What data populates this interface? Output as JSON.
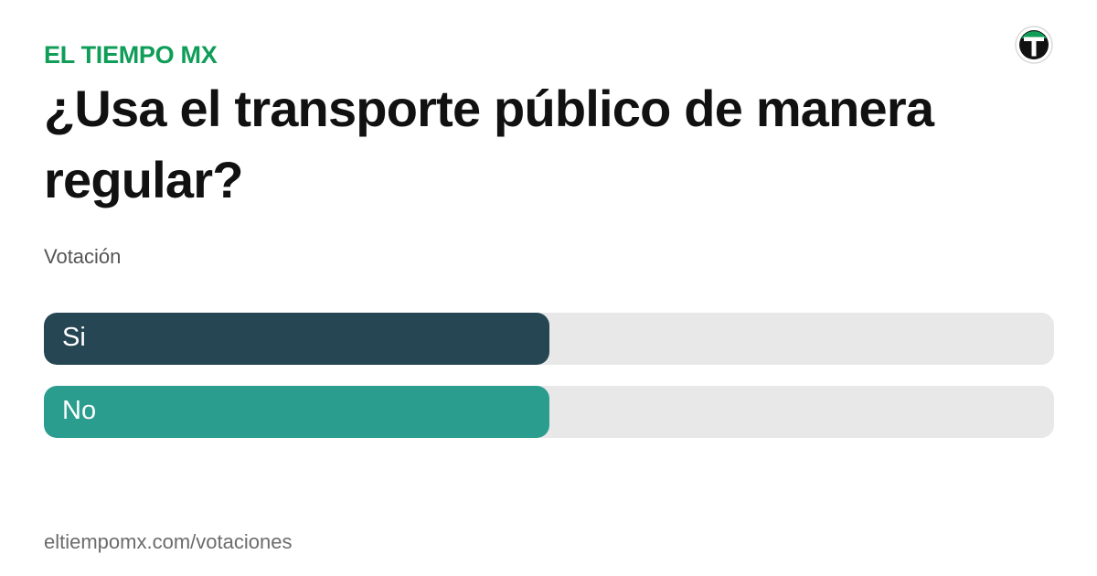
{
  "header": {
    "brand": "EL TIEMPO MX",
    "brand_color": "#0f9d58",
    "logo_icon": "el-tiempo-logo-icon"
  },
  "poll": {
    "question": "¿Usa el transporte público de manera regular?",
    "label": "Votación",
    "options": [
      {
        "label": "Si",
        "share": 0.5,
        "color": "#264653"
      },
      {
        "label": "No",
        "share": 0.5,
        "color": "#2a9d8f"
      }
    ],
    "track_color": "#e8e8e8"
  },
  "footer": {
    "url": "eltiempomx.com/votaciones"
  }
}
